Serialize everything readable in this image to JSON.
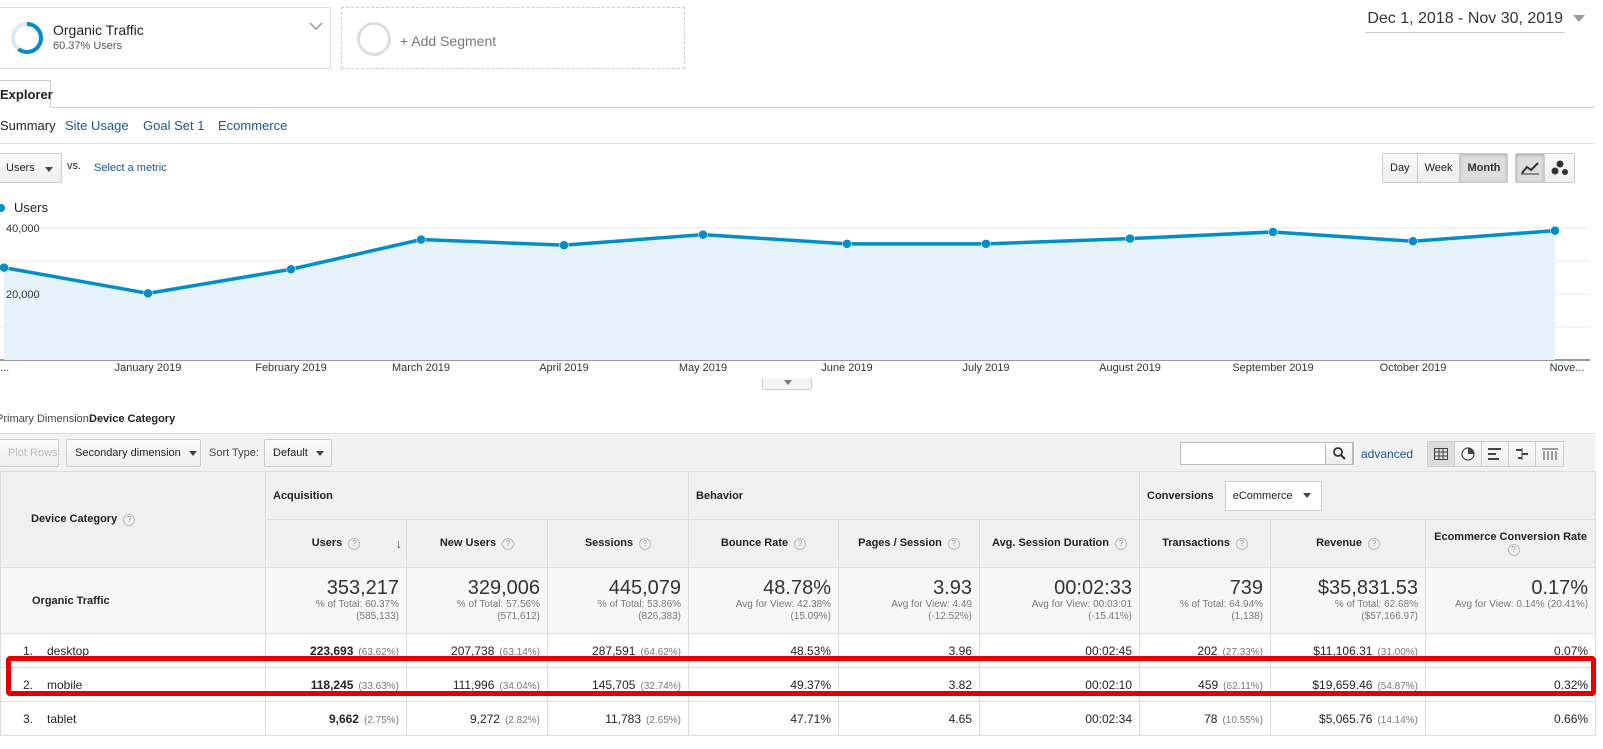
{
  "segments": {
    "active": {
      "name": "Organic Traffic",
      "sub": "60.37% Users",
      "ring_fraction": 0.6037
    },
    "add_label": "+ Add Segment"
  },
  "date_range": "Dec 1, 2018 - Nov 30, 2019",
  "explorer_tab": "Explorer",
  "subtabs": [
    "Summary",
    "Site Usage",
    "Goal Set 1",
    "Ecommerce"
  ],
  "metric": {
    "selected": "Users",
    "vs": "vs.",
    "select_metric": "Select a metric"
  },
  "periods": [
    "Day",
    "Week",
    "Month"
  ],
  "active_period": "Month",
  "chart_data": {
    "type": "area",
    "series": [
      {
        "name": "Users",
        "values": [
          28000,
          20200,
          27500,
          36500,
          34800,
          38000,
          35200,
          35200,
          36800,
          38800,
          36000,
          39200
        ]
      }
    ],
    "x": [
      "...",
      "January 2019",
      "February 2019",
      "March 2019",
      "April 2019",
      "May 2019",
      "June 2019",
      "July 2019",
      "August 2019",
      "September 2019",
      "October 2019",
      "Nove..."
    ],
    "yticks": [
      "20,000",
      "40,000"
    ],
    "ylim": [
      0,
      40000
    ],
    "color": "#058dc7",
    "fill": "#e5f2fa",
    "grid": true
  },
  "primary_dimension": {
    "label": "Primary Dimension:",
    "value": "Device Category"
  },
  "toolbar": {
    "plot_rows": "Plot Rows",
    "secondary_dimension": "Secondary dimension",
    "sort_type_label": "Sort Type:",
    "sort_type_value": "Default",
    "advanced": "advanced"
  },
  "table": {
    "dimension_header": "Device Category",
    "groups": {
      "acquisition": "Acquisition",
      "behavior": "Behavior",
      "conversions": "Conversions",
      "conversions_select": "eCommerce"
    },
    "columns": [
      "Users",
      "New Users",
      "Sessions",
      "Bounce Rate",
      "Pages / Session",
      "Avg. Session Duration",
      "Transactions",
      "Revenue",
      "Ecommerce Conversion Rate"
    ],
    "total": {
      "label": "Organic Traffic",
      "cells": [
        {
          "value": "353,217",
          "sub1": "% of Total: 60.37%",
          "sub2": "(585,133)"
        },
        {
          "value": "329,006",
          "sub1": "% of Total: 57.56%",
          "sub2": "(571,612)"
        },
        {
          "value": "445,079",
          "sub1": "% of Total: 53.86%",
          "sub2": "(826,383)"
        },
        {
          "value": "48.78%",
          "sub1": "Avg for View: 42.38%",
          "sub2": "(15.09%)"
        },
        {
          "value": "3.93",
          "sub1": "Avg for View: 4.49",
          "sub2": "(-12.52%)"
        },
        {
          "value": "00:02:33",
          "sub1": "Avg for View: 00:03:01",
          "sub2": "(-15.41%)"
        },
        {
          "value": "739",
          "sub1": "% of Total: 64.94%",
          "sub2": "(1,138)"
        },
        {
          "value": "$35,831.53",
          "sub1": "% of Total: 62.68%",
          "sub2": "($57,166.97)"
        },
        {
          "value": "0.17%",
          "sub1": "Avg for View: 0.14% (20.41%)",
          "sub2": ""
        }
      ]
    },
    "rows": [
      {
        "rank": "1.",
        "name": "desktop",
        "users": "223,693",
        "users_pct": "(63.62%)",
        "new_users": "207,738",
        "new_users_pct": "(63.14%)",
        "sessions": "287,591",
        "sessions_pct": "(64.62%)",
        "bounce": "48.53%",
        "pages": "3.96",
        "duration": "00:02:45",
        "transactions": "202",
        "transactions_pct": "(27.33%)",
        "revenue": "$11,106.31",
        "revenue_pct": "(31.00%)",
        "conv": "0.07%"
      },
      {
        "rank": "2.",
        "name": "mobile",
        "users": "118,245",
        "users_pct": "(33.63%)",
        "new_users": "111,996",
        "new_users_pct": "(34.04%)",
        "sessions": "145,705",
        "sessions_pct": "(32.74%)",
        "bounce": "49.37%",
        "pages": "3.82",
        "duration": "00:02:10",
        "transactions": "459",
        "transactions_pct": "(62.11%)",
        "revenue": "$19,659.46",
        "revenue_pct": "(54.87%)",
        "conv": "0.32%"
      },
      {
        "rank": "3.",
        "name": "tablet",
        "users": "9,662",
        "users_pct": "(2.75%)",
        "new_users": "9,272",
        "new_users_pct": "(2.82%)",
        "sessions": "11,783",
        "sessions_pct": "(2.65%)",
        "bounce": "47.71%",
        "pages": "4.65",
        "duration": "00:02:34",
        "transactions": "78",
        "transactions_pct": "(10.55%)",
        "revenue": "$5,065.76",
        "revenue_pct": "(14.14%)",
        "conv": "0.66%"
      }
    ]
  },
  "highlight_color": "#e60000"
}
